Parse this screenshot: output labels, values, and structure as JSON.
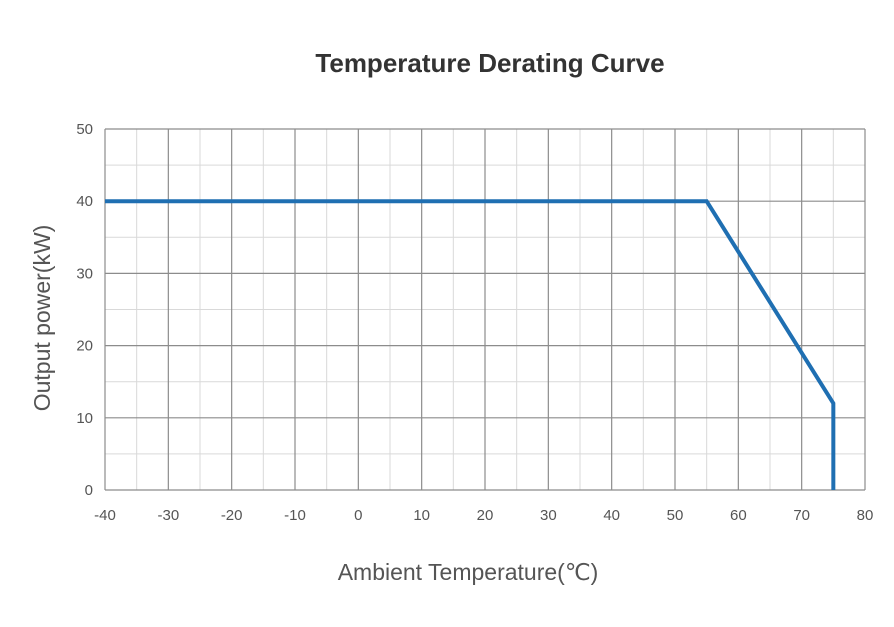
{
  "chart_data": {
    "type": "line",
    "title": "Temperature Derating Curve",
    "xlabel": "Ambient Temperature(℃)",
    "ylabel": "Output power(kW)",
    "xlim": [
      -40,
      80
    ],
    "ylim": [
      0,
      50
    ],
    "x_ticks": [
      -40,
      -30,
      -20,
      -10,
      0,
      10,
      20,
      30,
      40,
      50,
      60,
      70,
      80
    ],
    "y_ticks": [
      0,
      10,
      20,
      30,
      40,
      50
    ],
    "grid": true,
    "legend": "none",
    "series": [
      {
        "color": "#1f6fb2",
        "points": [
          {
            "x": -40,
            "y": 40
          },
          {
            "x": 55,
            "y": 40
          },
          {
            "x": 75,
            "y": 12
          },
          {
            "x": 75,
            "y": 0
          }
        ]
      }
    ]
  },
  "colors": {
    "line": "#1f6fb2",
    "major_grid": "#8c8c8c",
    "minor_grid": "#d9d9d9",
    "text": "#555555",
    "title": "#333333"
  }
}
